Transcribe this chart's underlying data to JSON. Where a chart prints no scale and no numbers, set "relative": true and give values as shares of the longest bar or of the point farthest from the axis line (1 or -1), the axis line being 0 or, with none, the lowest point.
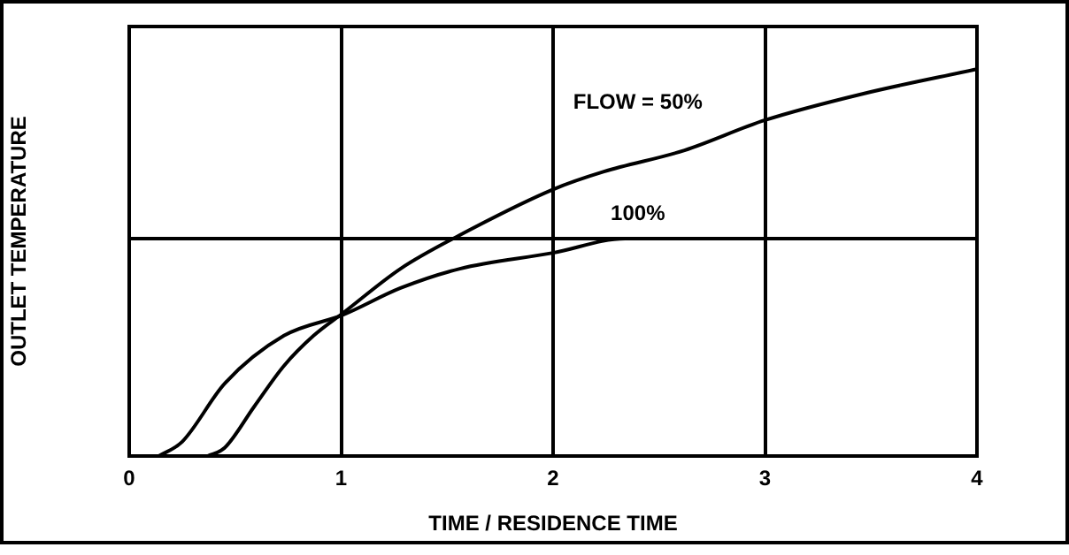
{
  "chart_data": {
    "type": "line",
    "xlabel": "TIME / RESIDENCE TIME",
    "ylabel": "OUTLET TEMPERATURE",
    "relative": true,
    "xlim": [
      0,
      4
    ],
    "xticks": [
      0,
      1,
      2,
      3,
      4
    ],
    "grid": "x",
    "tick_labels": "x",
    "legend": false,
    "marker": "none",
    "line_style": "solid",
    "series": [
      {
        "name": "FLOW = 50%",
        "color": "#000000",
        "x": [
          0.37,
          0.45,
          0.59,
          0.73,
          0.87,
          1.01,
          1.28,
          1.56,
          2.0,
          2.24,
          2.62,
          3.0,
          3.46,
          4.0
        ],
        "values": [
          0,
          0.021,
          0.128,
          0.233,
          0.311,
          0.37,
          0.484,
          0.571,
          0.689,
          0.735,
          0.79,
          0.868,
          0.936,
          1
        ]
      },
      {
        "name": "100%",
        "color": "#000000",
        "x": [
          0.14,
          0.25,
          0.45,
          0.73,
          1.01,
          1.28,
          1.56,
          2.0,
          2.34,
          3.0,
          4.0
        ],
        "values": [
          0,
          0.037,
          0.187,
          0.311,
          0.365,
          0.434,
          0.484,
          0.525,
          0.562,
          0.562,
          0.562
        ]
      }
    ],
    "ref_lines": [
      {
        "axis": "y",
        "value": 0.562,
        "color": "#000000"
      }
    ]
  }
}
